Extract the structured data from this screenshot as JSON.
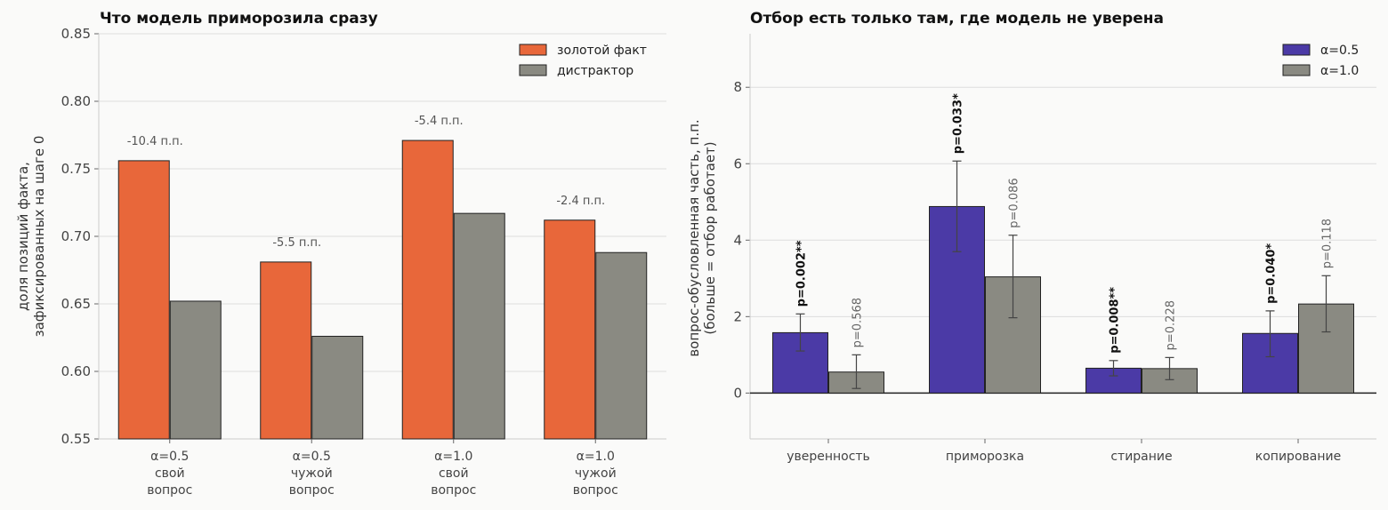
{
  "chart_data": [
    {
      "type": "bar",
      "title": "Что модель приморозила сразу",
      "ylabel_lines": [
        "доля позиций факта,",
        "зафиксированных на шаге 0"
      ],
      "ylim": [
        0.55,
        0.85
      ],
      "yticks": [
        "0.55",
        "0.60",
        "0.65",
        "0.70",
        "0.75",
        "0.80",
        "0.85"
      ],
      "ytick_values": [
        0.55,
        0.6,
        0.65,
        0.7,
        0.75,
        0.8,
        0.85
      ],
      "grid": true,
      "legend_position": "top-right",
      "categories": [
        [
          "α=0.5",
          "свой",
          "вопрос"
        ],
        [
          "α=0.5",
          "чужой",
          "вопрос"
        ],
        [
          "α=1.0",
          "свой",
          "вопрос"
        ],
        [
          "α=1.0",
          "чужой",
          "вопрос"
        ]
      ],
      "series": [
        {
          "name": "золотой факт",
          "color": "#e8673a",
          "values": [
            0.756,
            0.681,
            0.771,
            0.712
          ]
        },
        {
          "name": "дистрактор",
          "color": "#8a8a82",
          "values": [
            0.652,
            0.626,
            0.717,
            0.688
          ]
        }
      ],
      "annotations": [
        "-10.4 п.п.",
        "-5.5 п.п.",
        "-5.4 п.п.",
        "-2.4 п.п."
      ]
    },
    {
      "type": "bar",
      "title": "Отбор есть только там, где модель не уверена",
      "ylabel_lines": [
        "вопрос-обусловленная часть, п.п.",
        "(больше = отбор работает)"
      ],
      "ylim": [
        -1.2,
        9.4
      ],
      "yticks": [
        "0",
        "2",
        "4",
        "6",
        "8"
      ],
      "ytick_values": [
        0,
        2,
        4,
        6,
        8
      ],
      "grid": true,
      "legend_position": "top-right",
      "categories": [
        "уверенность",
        "приморозка",
        "стирание",
        "копирование"
      ],
      "series": [
        {
          "name": "α=0.5",
          "color": "#4b3aa6",
          "values": [
            1.58,
            4.88,
            0.65,
            1.56
          ],
          "err_low": [
            1.1,
            3.7,
            0.45,
            0.95
          ],
          "err_high": [
            2.07,
            6.07,
            0.85,
            2.15
          ],
          "pvalues": [
            "p=0.002**",
            "p=0.033*",
            "p=0.008**",
            "p=0.040*"
          ]
        },
        {
          "name": "α=1.0",
          "color": "#8a8a82",
          "values": [
            0.55,
            3.04,
            0.64,
            2.33
          ],
          "err_low": [
            0.12,
            1.97,
            0.35,
            1.6
          ],
          "err_high": [
            1.0,
            4.13,
            0.93,
            3.07
          ],
          "pvalues": [
            "p=0.568",
            "p=0.086",
            "p=0.228",
            "p=0.118"
          ]
        }
      ]
    }
  ]
}
